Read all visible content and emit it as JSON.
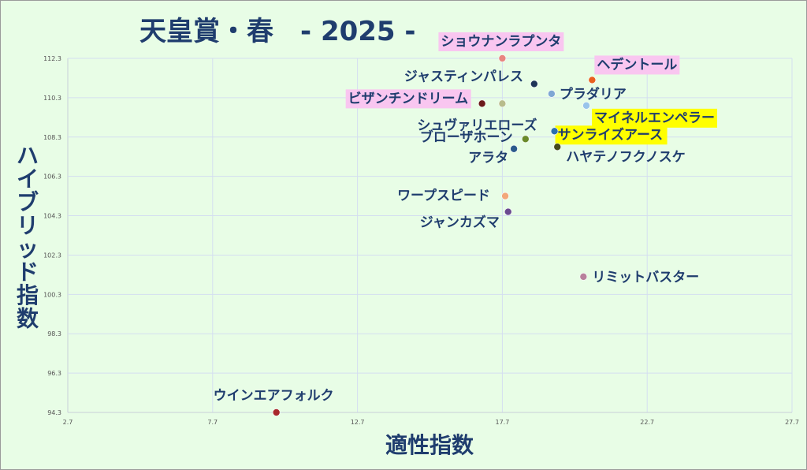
{
  "chart_data": {
    "type": "scatter",
    "title": "天皇賞・春　- 2025 -",
    "xlabel": "適性指数",
    "ylabel": "ハイブリッド指数",
    "xlim": [
      2.7,
      27.7
    ],
    "ylim": [
      94.3,
      112.3
    ],
    "x_ticks": [
      "2.7",
      "7.7",
      "12.7",
      "17.7",
      "22.7",
      "27.7"
    ],
    "y_ticks": [
      "112.3",
      "110.3",
      "108.3",
      "106.3",
      "104.3",
      "102.3",
      "100.3",
      "98.3",
      "96.3",
      "94.3"
    ],
    "grid": true,
    "highlight_colors": {
      "pink": "#f9c6f0",
      "yellow": "#ffff00"
    },
    "points": [
      {
        "name": "ショウナンラプンタ",
        "x": 17.7,
        "y": 112.3,
        "color": "#e8867f",
        "highlight": "pink"
      },
      {
        "name": "ヘデントール",
        "x": 20.8,
        "y": 111.2,
        "color": "#e8601f",
        "highlight": "pink"
      },
      {
        "name": "ジャスティンパレス",
        "x": 18.8,
        "y": 111.0,
        "color": "#1f3458",
        "highlight": ""
      },
      {
        "name": "プラダリア",
        "x": 19.4,
        "y": 110.5,
        "color": "#7fa7d4",
        "highlight": ""
      },
      {
        "name": "ビザンチンドリーム",
        "x": 17.0,
        "y": 110.0,
        "color": "#6b1a1a",
        "highlight": "pink"
      },
      {
        "name": "シュヴァリエローズ",
        "x": 17.7,
        "y": 110.0,
        "color": "#b8bc8c",
        "highlight": ""
      },
      {
        "name": "マイネルエンペラー",
        "x": 20.6,
        "y": 109.9,
        "color": "#99c4ea",
        "highlight": "yellow"
      },
      {
        "name": "サンライズアース",
        "x": 19.5,
        "y": 108.6,
        "color": "#2c6fae",
        "highlight": "yellow"
      },
      {
        "name": "ブローザホーン",
        "x": 18.5,
        "y": 108.2,
        "color": "#6a8a2a",
        "highlight": ""
      },
      {
        "name": "ハヤテノフクノスケ",
        "x": 19.6,
        "y": 107.8,
        "color": "#454a1c",
        "highlight": ""
      },
      {
        "name": "アラタ",
        "x": 18.1,
        "y": 107.7,
        "color": "#2b5a8c",
        "highlight": ""
      },
      {
        "name": "ワープスピード",
        "x": 17.8,
        "y": 105.3,
        "color": "#f2a77a",
        "highlight": ""
      },
      {
        "name": "ジャンカズマ",
        "x": 17.9,
        "y": 104.5,
        "color": "#6b4a90",
        "highlight": ""
      },
      {
        "name": "リミットバスター",
        "x": 20.5,
        "y": 101.2,
        "color": "#b8819c",
        "highlight": ""
      },
      {
        "name": "ウインエアフォルク",
        "x": 9.9,
        "y": 94.3,
        "color": "#a8282c",
        "highlight": ""
      }
    ]
  }
}
